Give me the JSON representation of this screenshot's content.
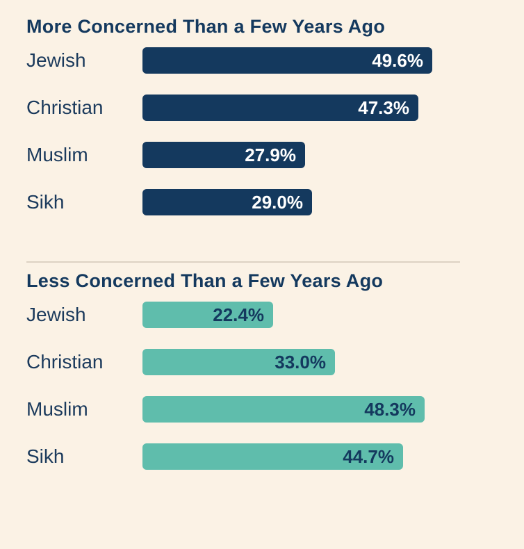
{
  "colors": {
    "background": "#fbf2e5",
    "navy": "#14395e",
    "teal": "#5fbdac",
    "divider": "#ddd2c3"
  },
  "chart_data": [
    {
      "type": "bar",
      "orientation": "horizontal",
      "title": "More Concerned Than a Few Years Ago",
      "categories": [
        "Jewish",
        "Christian",
        "Muslim",
        "Sikh"
      ],
      "values": [
        49.6,
        47.3,
        27.9,
        29.0
      ],
      "value_labels": [
        "49.6%",
        "47.3%",
        "27.9%",
        "29.0%"
      ],
      "bar_color": "#14395e",
      "value_label_color": "#ffffff",
      "xlim": [
        0,
        50
      ],
      "grid": false,
      "legend": false
    },
    {
      "type": "bar",
      "orientation": "horizontal",
      "title": "Less Concerned Than a Few Years Ago",
      "categories": [
        "Jewish",
        "Christian",
        "Muslim",
        "Sikh"
      ],
      "values": [
        22.4,
        33.0,
        48.3,
        44.7
      ],
      "value_labels": [
        "22.4%",
        "33.0%",
        "48.3%",
        "44.7%"
      ],
      "bar_color": "#5fbdac",
      "value_label_color": "#14395e",
      "xlim": [
        0,
        50
      ],
      "grid": false,
      "legend": false
    }
  ]
}
